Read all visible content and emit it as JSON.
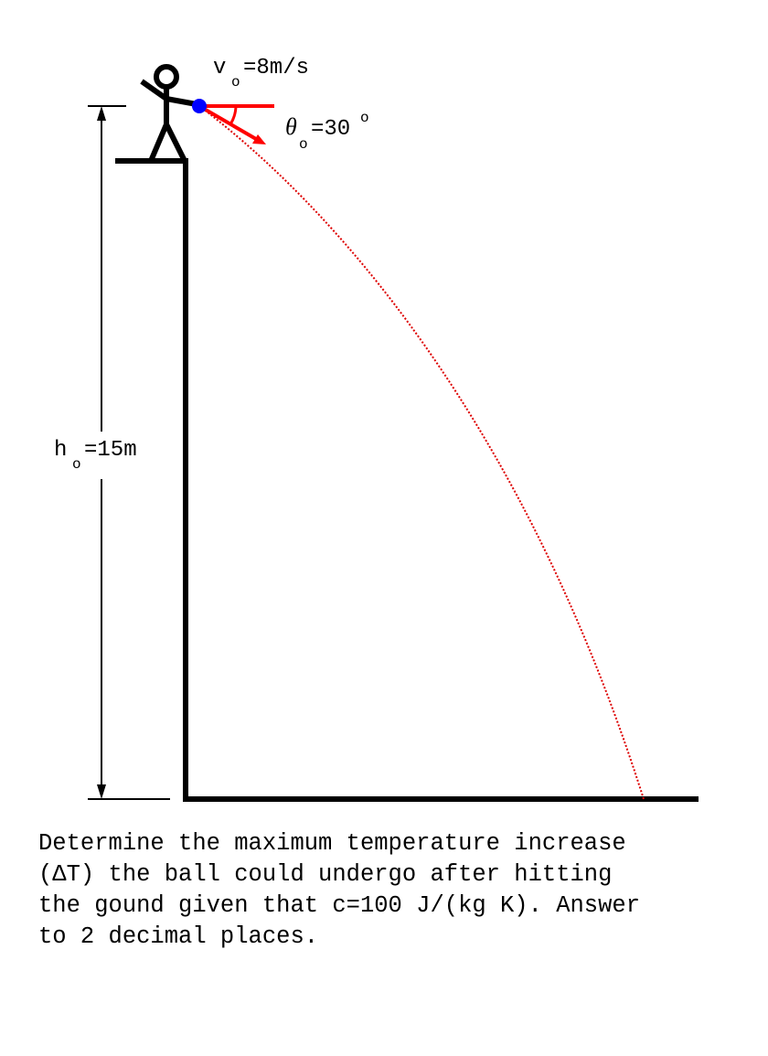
{
  "diagram": {
    "velocity_label": {
      "symbol": "v",
      "subscript": "o",
      "value": "=8m/s"
    },
    "angle_label": {
      "symbol": "θ",
      "subscript": "o",
      "value": "=30",
      "unit": "o"
    },
    "height_label": {
      "symbol": "h",
      "subscript": "o",
      "value": "=15m"
    },
    "colors": {
      "structure": "#000000",
      "vector": "#ff0000",
      "trajectory": "#dd0000",
      "ball": "#0000ff"
    }
  },
  "question": {
    "lines": [
      "Determine the maximum temperature increase",
      "(ΔT) the ball could undergo after hitting",
      "the gound given that c=100 J/(kg K). Answer",
      "to 2 decimal places."
    ]
  }
}
